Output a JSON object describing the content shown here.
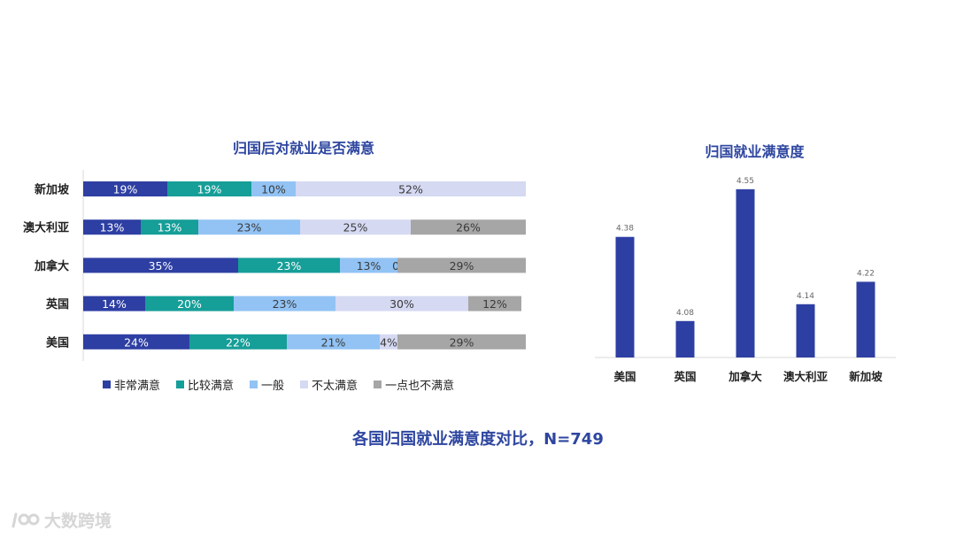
{
  "chart_data": [
    {
      "type": "bar",
      "orientation": "horizontal",
      "stacked": true,
      "percent": true,
      "title": "归国后对就业是否满意",
      "categories": [
        "新加坡",
        "澳大利亚",
        "加拿大",
        "英国",
        "美国"
      ],
      "series": [
        {
          "name": "非常满意",
          "color": "#2e3fa3",
          "values": [
            19,
            13,
            35,
            14,
            24
          ]
        },
        {
          "name": "比较满意",
          "color": "#169e98",
          "values": [
            19,
            13,
            23,
            20,
            22
          ]
        },
        {
          "name": "一般",
          "color": "#92c3f4",
          "values": [
            10,
            23,
            13,
            23,
            21
          ]
        },
        {
          "name": "不太满意",
          "color": "#d5d9f2",
          "values": [
            52,
            25,
            0,
            30,
            4
          ]
        },
        {
          "name": "一点也不满意",
          "color": "#a6a6a6",
          "values": [
            0,
            26,
            29,
            12,
            29
          ]
        }
      ],
      "labels": [
        [
          "19%",
          "19%",
          "10%",
          "52%",
          ""
        ],
        [
          "13%",
          "13%",
          "23%",
          "25%",
          "26%"
        ],
        [
          "35%",
          "23%",
          "13%",
          "0%",
          "29%"
        ],
        [
          "14%",
          "20%",
          "23%",
          "30%",
          "12%"
        ],
        [
          "24%",
          "22%",
          "21%",
          "4%",
          "29%"
        ]
      ],
      "legend_position": "bottom"
    },
    {
      "type": "bar",
      "orientation": "vertical",
      "title": "归国就业满意度",
      "categories": [
        "美国",
        "英国",
        "加拿大",
        "澳大利亚",
        "新加坡"
      ],
      "values": [
        4.38,
        4.08,
        4.55,
        4.14,
        4.22
      ],
      "value_labels": [
        "4.38",
        "4.08",
        "4.55",
        "4.14",
        "4.22"
      ],
      "color": "#2e3fa3",
      "ylim": [
        3.95,
        4.6
      ]
    }
  ],
  "caption": "各国归国就业满意度对比，N=749",
  "watermark": "大数跨境"
}
